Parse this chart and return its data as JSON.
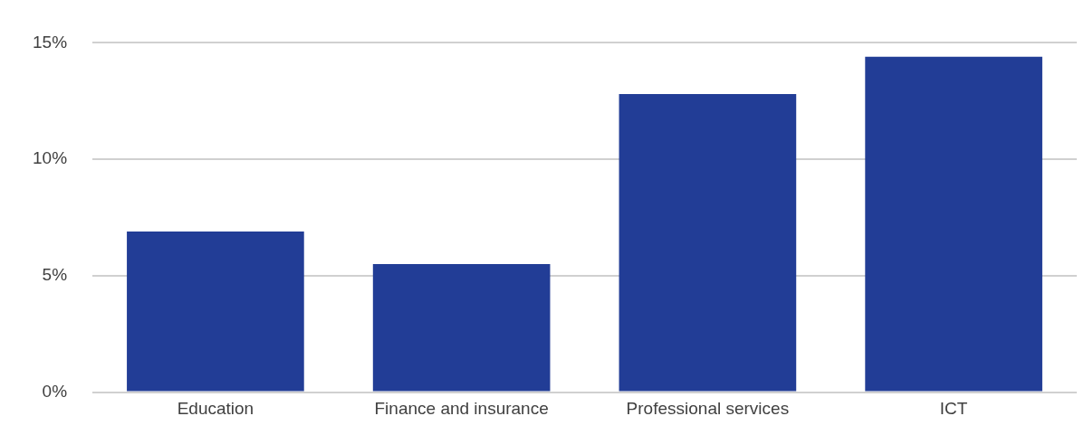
{
  "chart_data": {
    "type": "bar",
    "categories": [
      "Education",
      "Finance and insurance",
      "Professional services",
      "ICT"
    ],
    "values": [
      6.9,
      5.5,
      12.8,
      14.4
    ],
    "color": "#223d96",
    "ylim": [
      0,
      15
    ],
    "yticks": [
      {
        "value": 0,
        "label": "0%"
      },
      {
        "value": 5,
        "label": "5%"
      },
      {
        "value": 10,
        "label": "10%"
      },
      {
        "value": 15,
        "label": "15%"
      }
    ],
    "grid": "y"
  }
}
